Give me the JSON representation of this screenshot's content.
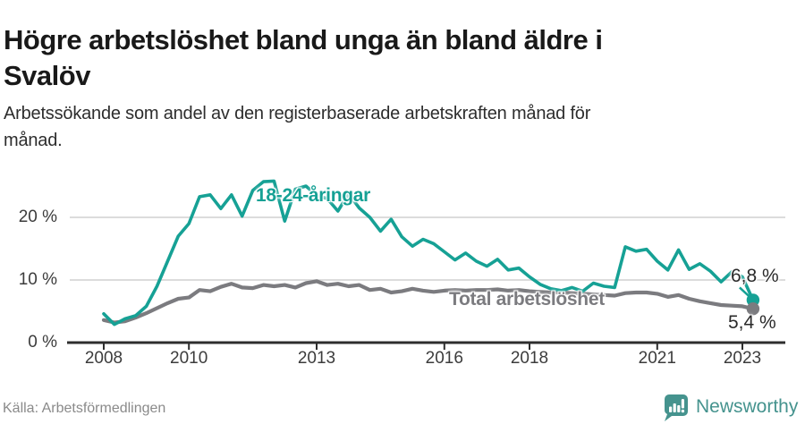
{
  "header": {
    "title_lines": [
      "Högre arbetslöshet bland unga än bland äldre i",
      "Svalöv"
    ],
    "subtitle_lines": [
      "Arbetssökande som andel av den registerbaserade arbetskraften månad för",
      "månad."
    ]
  },
  "chart_data": {
    "type": "line",
    "title": "Högre arbetslöshet bland unga än bland äldre i Svalöv",
    "subtitle": "Arbetssökande som andel av den registerbaserade arbetskraften månad för månad.",
    "xlabel": "",
    "ylabel": "",
    "grid": "horizontal",
    "legend": "inline-labels",
    "xlim": [
      2007.9,
      2024.0
    ],
    "ylim": [
      0,
      27.5
    ],
    "x": [
      2008,
      2008.25,
      2008.5,
      2008.75,
      2009,
      2009.25,
      2009.5,
      2009.75,
      2010,
      2010.25,
      2010.5,
      2010.75,
      2011,
      2011.25,
      2011.5,
      2011.75,
      2012,
      2012.25,
      2012.5,
      2012.75,
      2013,
      2013.25,
      2013.5,
      2013.75,
      2014,
      2014.25,
      2014.5,
      2014.75,
      2015,
      2015.25,
      2015.5,
      2015.75,
      2016,
      2016.25,
      2016.5,
      2016.75,
      2017,
      2017.25,
      2017.5,
      2017.75,
      2018,
      2018.25,
      2018.5,
      2018.75,
      2019,
      2019.25,
      2019.5,
      2019.75,
      2020,
      2020.25,
      2020.5,
      2020.75,
      2021,
      2021.25,
      2021.5,
      2021.75,
      2022,
      2022.25,
      2022.5,
      2022.75,
      2023,
      2023.25
    ],
    "series": [
      {
        "name": "18-24-åringar",
        "color": "#16a195",
        "end_label": "6,8 %",
        "end_value": 6.8,
        "callout_line": true,
        "values": [
          4.6,
          2.9,
          3.8,
          4.3,
          5.8,
          9.0,
          13.0,
          17.0,
          19.0,
          23.3,
          23.6,
          21.4,
          23.6,
          20.2,
          24.3,
          25.7,
          25.8,
          19.4,
          24.5,
          25.0,
          23.5,
          23.0,
          21.0,
          23.8,
          21.5,
          20.0,
          17.8,
          19.7,
          16.9,
          15.4,
          16.5,
          15.8,
          14.5,
          13.2,
          14.3,
          13.0,
          12.2,
          13.3,
          11.6,
          11.9,
          10.5,
          9.3,
          8.6,
          8.3,
          8.8,
          8.2,
          9.5,
          9.0,
          8.8,
          15.3,
          14.6,
          14.9,
          13.0,
          11.6,
          14.8,
          11.7,
          12.6,
          11.4,
          9.7,
          11.3,
          10.5,
          6.8
        ]
      },
      {
        "name": "Total arbetslöshet",
        "color": "#7b7b7f",
        "end_label": "5,4 %",
        "end_value": 5.4,
        "callout_line": false,
        "values": [
          3.6,
          3.2,
          3.4,
          4.0,
          4.7,
          5.5,
          6.3,
          7.0,
          7.2,
          8.4,
          8.2,
          8.9,
          9.4,
          8.8,
          8.7,
          9.2,
          9.0,
          9.2,
          8.8,
          9.5,
          9.8,
          9.2,
          9.4,
          9.0,
          9.2,
          8.4,
          8.6,
          8.0,
          8.2,
          8.6,
          8.3,
          8.1,
          8.3,
          8.4,
          8.3,
          8.4,
          8.4,
          8.5,
          8.3,
          8.4,
          8.2,
          8.1,
          8.0,
          8.0,
          7.9,
          7.8,
          7.7,
          7.6,
          7.5,
          7.9,
          8.0,
          8.0,
          7.8,
          7.3,
          7.6,
          7.0,
          6.6,
          6.3,
          6.0,
          5.9,
          5.8,
          5.4
        ]
      }
    ],
    "x_ticks": [
      {
        "year": 2008,
        "label": "2008"
      },
      {
        "year": 2010,
        "label": "2010"
      },
      {
        "year": 2013,
        "label": "2013"
      },
      {
        "year": 2016,
        "label": "2016"
      },
      {
        "year": 2018,
        "label": "2018"
      },
      {
        "year": 2021,
        "label": "2021"
      },
      {
        "year": 2023,
        "label": "2023"
      }
    ],
    "y_ticks": [
      {
        "value": 0,
        "label": "0 %"
      },
      {
        "value": 10,
        "label": "10 %"
      },
      {
        "value": 20,
        "label": "20 %"
      }
    ]
  },
  "colors": {
    "accent_teal": "#16a195",
    "line_gray": "#7b7b7f",
    "gridline": "#dcdcdc",
    "axis": "#2e2e2e",
    "logo_teal": "#45938e"
  },
  "footer": {
    "source": "Källa: Arbetsförmedlingen",
    "brand": "Newsworthy"
  }
}
